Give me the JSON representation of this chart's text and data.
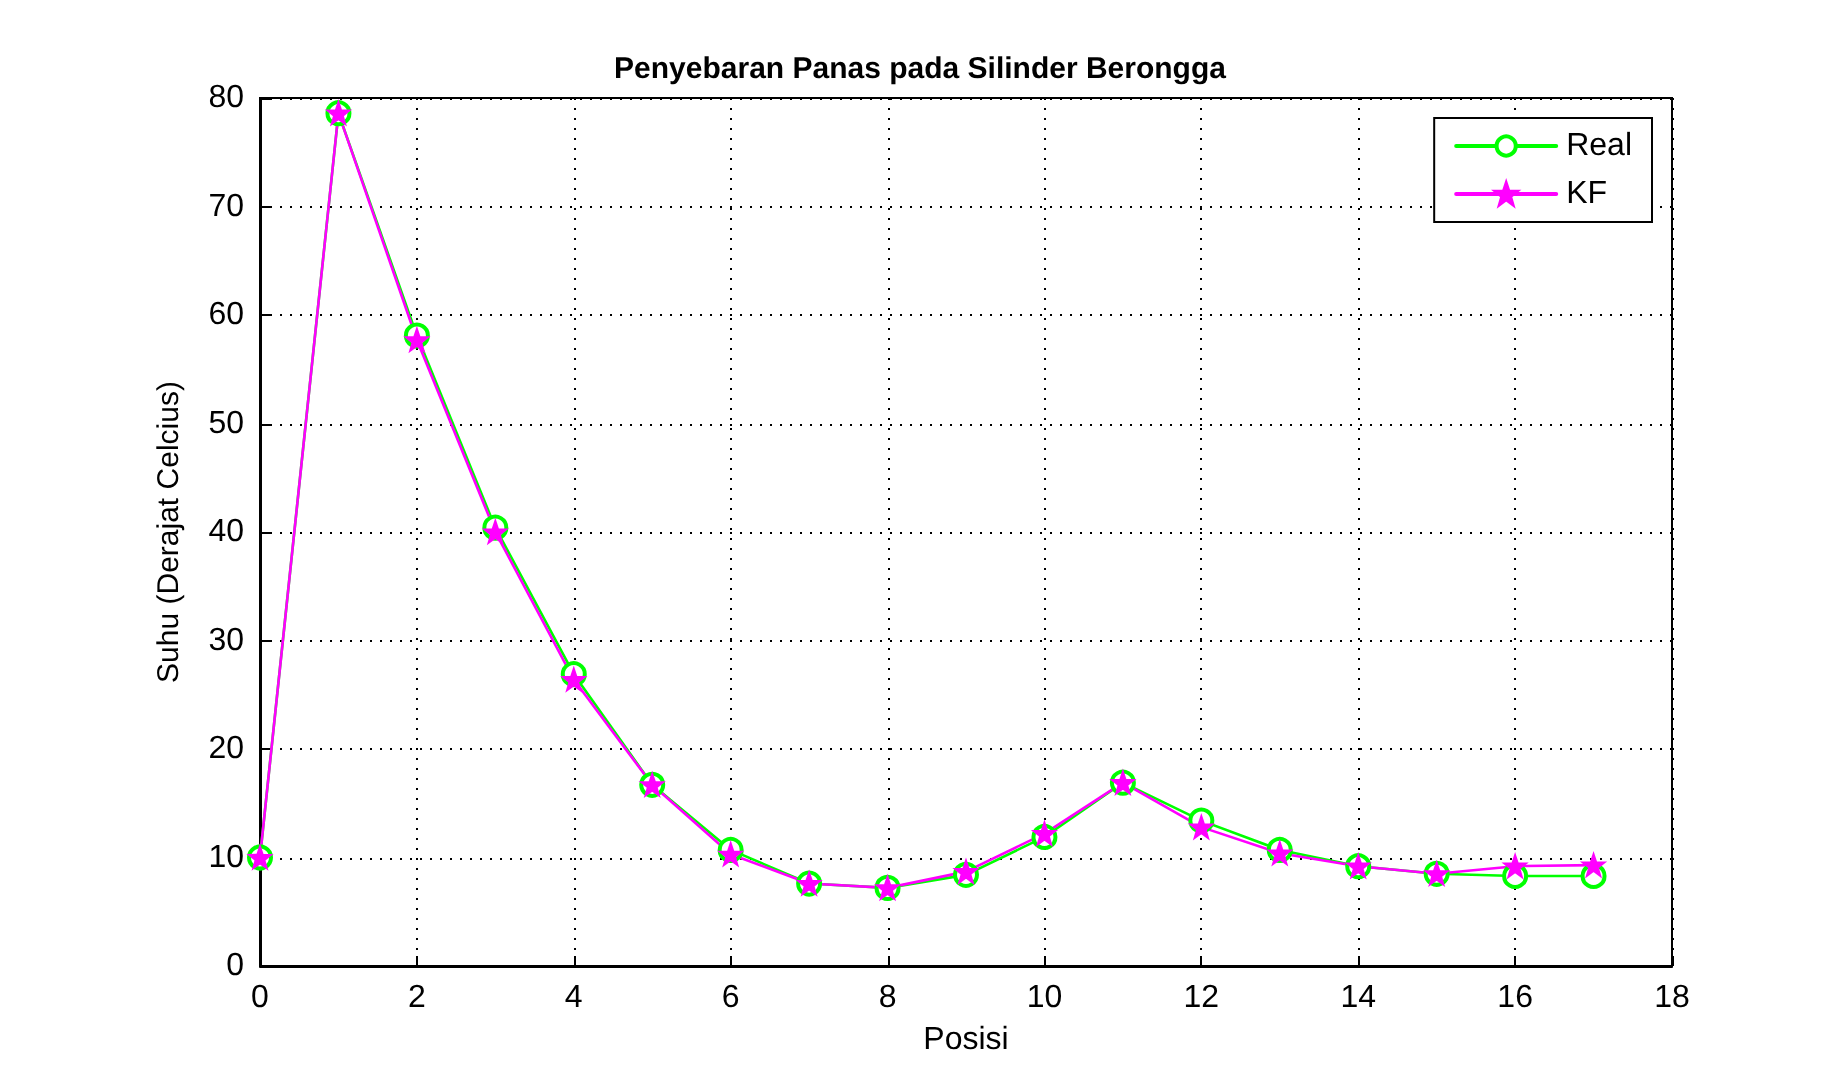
{
  "chart_data": {
    "type": "line",
    "title": "Penyebaran Panas pada Silinder Berongga",
    "xlabel": "Posisi",
    "ylabel": "Suhu (Derajat Celcius)",
    "x": [
      0,
      1,
      2,
      3,
      4,
      5,
      6,
      7,
      8,
      9,
      10,
      11,
      12,
      13,
      14,
      15,
      16,
      17
    ],
    "series": [
      {
        "name": "Real",
        "color": "#00ff00",
        "marker": "circle",
        "values": [
          10,
          78.6,
          58.1,
          40.4,
          26.9,
          16.7,
          10.7,
          7.6,
          7.2,
          8.4,
          11.9,
          16.9,
          13.4,
          10.7,
          9.2,
          8.5,
          8.3,
          8.3
        ]
      },
      {
        "name": "KF",
        "color": "#ff00ff",
        "marker": "star",
        "values": [
          10,
          78.6,
          57.7,
          40.0,
          26.4,
          16.7,
          10.3,
          7.6,
          7.2,
          8.7,
          12.2,
          16.9,
          12.8,
          10.4,
          9.2,
          8.5,
          9.2,
          9.3
        ]
      }
    ],
    "xlim": [
      0,
      18
    ],
    "xticks": [
      0,
      2,
      4,
      6,
      8,
      10,
      12,
      14,
      16,
      18
    ],
    "ylim": [
      0,
      80
    ],
    "yticks": [
      0,
      10,
      20,
      30,
      40,
      50,
      60,
      70,
      80
    ],
    "grid": true,
    "legend": "top right",
    "line_style": "solid"
  }
}
